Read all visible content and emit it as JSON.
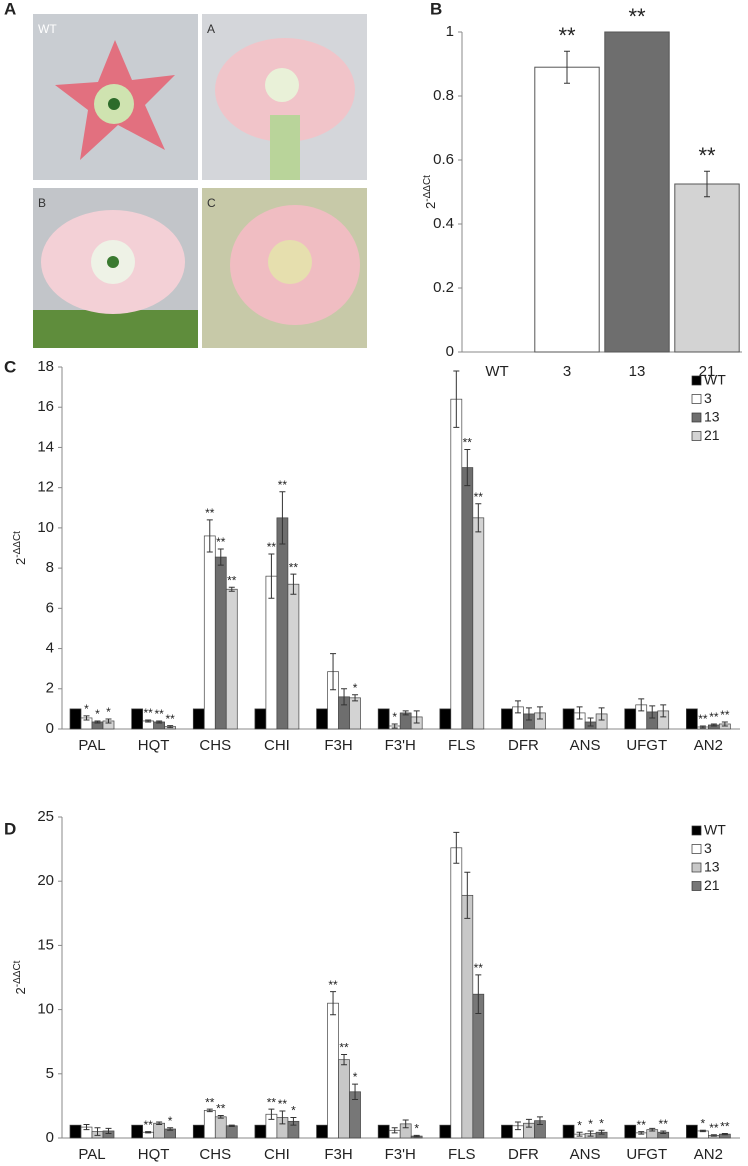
{
  "photo_panel": {
    "label": "A",
    "photos": [
      "WT",
      "A",
      "B",
      "C"
    ]
  },
  "chart_data": [
    {
      "type": "bar",
      "panel": "B",
      "y_label": {
        "base": "2",
        "exponent": "-ΔΔCt"
      },
      "categories": [
        "WT",
        "3",
        "13",
        "21"
      ],
      "values": [
        0,
        0.89,
        1.0,
        0.525
      ],
      "errors": [
        0,
        0.05,
        0,
        0.04
      ],
      "annotations": [
        null,
        "**",
        "**",
        "**"
      ],
      "colors": [
        "#000000",
        "#ffffff",
        "#6e6e6e",
        "#d3d3d3"
      ],
      "ylim": [
        0,
        1
      ],
      "yticks": [
        0,
        0.2,
        0.4,
        0.6,
        0.8,
        1
      ]
    },
    {
      "type": "grouped_bar",
      "panel": "C",
      "y_label": {
        "base": "2",
        "exponent": "-ΔΔCt"
      },
      "legend": "upper right",
      "categories": [
        "PAL",
        "HQT",
        "CHS",
        "CHI",
        "F3H",
        "F3'H",
        "FLS",
        "DFR",
        "ANS",
        "UFGT",
        "AN2"
      ],
      "series": [
        {
          "name": "WT",
          "color": "#000000",
          "values": [
            1,
            1,
            1,
            1,
            1,
            1,
            1,
            1,
            1,
            1,
            1
          ]
        },
        {
          "name": "3",
          "color": "#ffffff",
          "values": [
            0.55,
            0.4,
            9.6,
            7.6,
            2.85,
            0.15,
            16.4,
            1.1,
            0.8,
            1.2,
            0.1
          ],
          "errors": [
            0.1,
            0.05,
            0.8,
            1.1,
            0.9,
            0.1,
            1.4,
            0.3,
            0.3,
            0.3,
            0.05
          ],
          "annotations": [
            "*",
            "**",
            "**",
            "**",
            null,
            "*",
            null,
            null,
            null,
            null,
            "**"
          ]
        },
        {
          "name": "13",
          "color": "#6e6e6e",
          "values": [
            0.35,
            0.35,
            8.55,
            10.5,
            1.6,
            0.8,
            13.0,
            0.75,
            0.35,
            0.85,
            0.2
          ],
          "errors": [
            0.05,
            0.05,
            0.4,
            1.3,
            0.4,
            0.1,
            0.9,
            0.3,
            0.2,
            0.3,
            0.05
          ],
          "annotations": [
            "*",
            "**",
            "**",
            "**",
            null,
            null,
            "**",
            null,
            null,
            null,
            "**"
          ]
        },
        {
          "name": "21",
          "color": "#d3d3d3",
          "values": [
            0.4,
            0.12,
            6.95,
            7.2,
            1.55,
            0.6,
            10.5,
            0.8,
            0.75,
            0.9,
            0.25
          ],
          "errors": [
            0.1,
            0.05,
            0.1,
            0.5,
            0.15,
            0.3,
            0.7,
            0.3,
            0.3,
            0.3,
            0.1
          ],
          "annotations": [
            "*",
            "**",
            "**",
            "**",
            "*",
            null,
            "**",
            null,
            null,
            null,
            "**"
          ]
        }
      ],
      "ylim": [
        0,
        18
      ],
      "yticks": [
        0,
        2,
        4,
        6,
        8,
        10,
        12,
        14,
        16,
        18
      ]
    },
    {
      "type": "grouped_bar",
      "panel": "D",
      "y_label": {
        "base": "2",
        "exponent": "-ΔΔCt"
      },
      "legend": "upper right",
      "categories": [
        "PAL",
        "HQT",
        "CHS",
        "CHI",
        "F3H",
        "F3'H",
        "FLS",
        "DFR",
        "ANS",
        "UFGT",
        "AN2"
      ],
      "series": [
        {
          "name": "WT",
          "color": "#000000",
          "values": [
            1,
            1,
            1,
            1,
            1,
            1,
            1,
            1,
            1,
            1,
            1
          ]
        },
        {
          "name": "3",
          "color": "#ffffff",
          "values": [
            0.85,
            0.45,
            2.15,
            1.85,
            10.5,
            0.6,
            22.6,
            0.95,
            0.3,
            0.4,
            0.55
          ],
          "errors": [
            0.2,
            0.05,
            0.1,
            0.4,
            0.9,
            0.2,
            1.2,
            0.3,
            0.15,
            0.1,
            0.05
          ],
          "annotations": [
            null,
            "**",
            "**",
            "**",
            "**",
            null,
            null,
            null,
            "*",
            "**",
            "*"
          ]
        },
        {
          "name": "13",
          "color": "#c8c8c8",
          "values": [
            0.5,
            1.15,
            1.65,
            1.6,
            6.1,
            1.1,
            18.9,
            1.15,
            0.35,
            0.65,
            0.2
          ],
          "errors": [
            0.3,
            0.1,
            0.1,
            0.5,
            0.4,
            0.3,
            1.8,
            0.3,
            0.2,
            0.1,
            0.05
          ],
          "annotations": [
            null,
            null,
            "**",
            "**",
            "**",
            null,
            null,
            null,
            "*",
            null,
            "**"
          ]
        },
        {
          "name": "21",
          "color": "#777777",
          "values": [
            0.55,
            0.7,
            0.95,
            1.3,
            3.6,
            0.15,
            11.2,
            1.35,
            0.45,
            0.45,
            0.3
          ],
          "errors": [
            0.2,
            0.1,
            0.05,
            0.3,
            0.6,
            0.05,
            1.5,
            0.3,
            0.15,
            0.1,
            0.05
          ],
          "annotations": [
            null,
            "*",
            null,
            "*",
            "*",
            "*",
            "**",
            null,
            "*",
            "**",
            "**"
          ]
        }
      ],
      "ylim": [
        0,
        25
      ],
      "yticks": [
        0,
        5,
        10,
        15,
        20,
        25
      ]
    }
  ]
}
